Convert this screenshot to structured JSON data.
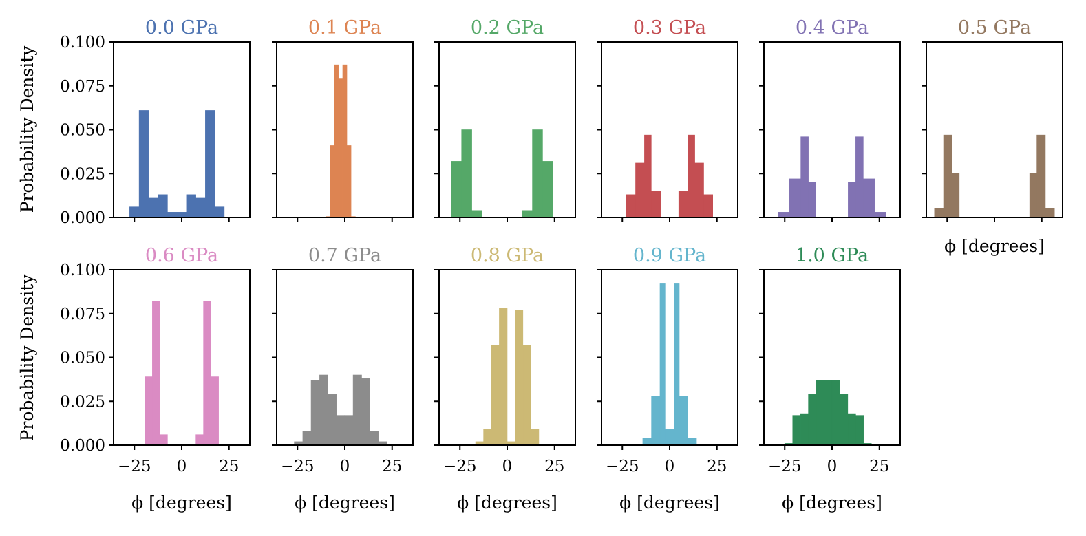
{
  "figure": {
    "ylabel": "Probability Density",
    "xlabel": "ϕ [degrees]"
  },
  "chart_data": {
    "type": "bar",
    "subtype": "histogram",
    "xlim": [
      -36,
      36
    ],
    "ylim": [
      0,
      0.1
    ],
    "xticks": [
      -25,
      0,
      25
    ],
    "xtick_labels": [
      "−25",
      "0",
      "25"
    ],
    "yticks": [
      0,
      0.025,
      0.05,
      0.075,
      0.1
    ],
    "ytick_labels": [
      "0.000",
      "0.025",
      "0.050",
      "0.075",
      "0.100"
    ],
    "panels": [
      {
        "title": "0.0 GPa",
        "color": "#4c72b0",
        "edges": [
          -27.5,
          -22.5,
          -17.5,
          -12.5,
          -7.5,
          -2.5,
          2.5,
          7.5,
          12.5,
          17.5,
          22.5,
          27.5
        ],
        "values": [
          0.006,
          0.061,
          0.011,
          0.013,
          0.003,
          0.003,
          0.013,
          0.011,
          0.061,
          0.006,
          0
        ]
      },
      {
        "title": "0.1 GPa",
        "color": "#dd8452",
        "edges": [
          -10,
          -7.8,
          -5.6,
          -3.3,
          -1.1,
          1.1,
          3.3,
          5.6,
          7.8,
          10
        ],
        "values": [
          0.0005,
          0.041,
          0.087,
          0.079,
          0.087,
          0.041,
          0.0005,
          0,
          0
        ]
      },
      {
        "title": "0.2 GPa",
        "color": "#55a868",
        "edges": [
          -29.5,
          -24.1,
          -18.7,
          -13.3,
          -7.9,
          -2.5,
          2.5,
          7.9,
          13.3,
          18.7,
          24.1,
          29.5
        ],
        "values": [
          0.032,
          0.05,
          0.004,
          0,
          0,
          0,
          0,
          0.004,
          0.05,
          0.032,
          0
        ]
      },
      {
        "title": "0.3 GPa",
        "color": "#c44e52",
        "edges": [
          -22.8,
          -18.0,
          -13.3,
          -9.7,
          -4.8,
          4.8,
          9.7,
          13.3,
          18.0,
          22.8
        ],
        "values": [
          0.013,
          0.031,
          0.047,
          0.015,
          0,
          0.015,
          0.047,
          0.031,
          0.013
        ]
      },
      {
        "title": "0.4 GPa",
        "color": "#8172b3",
        "edges": [
          -28.5,
          -22.5,
          -16.5,
          -12.5,
          -8.5,
          -1.6,
          1.6,
          8.5,
          12.5,
          16.5,
          22.5,
          28.5
        ],
        "values": [
          0.003,
          0.022,
          0.046,
          0.02,
          0,
          0,
          0,
          0.02,
          0.046,
          0.022,
          0.003
        ]
      },
      {
        "title": "0.5 GPa",
        "color": "#937860",
        "edges": [
          -31.7,
          -26.9,
          -22.4,
          -18.6,
          -14.4,
          14.4,
          18.6,
          22.4,
          26.9,
          31.7
        ],
        "values": [
          0.005,
          0.047,
          0.025,
          0,
          0,
          0,
          0.025,
          0.047,
          0.005
        ]
      },
      {
        "title": "0.6 GPa",
        "color": "#da8bc3",
        "edges": [
          -19.5,
          -15.5,
          -11.5,
          -7.5,
          -2.5,
          2.5,
          7.5,
          11.5,
          15.5,
          19.5
        ],
        "values": [
          0.039,
          0.082,
          0.006,
          0,
          0,
          0,
          0.006,
          0.082,
          0.039
        ]
      },
      {
        "title": "0.7 GPa",
        "color": "#8c8c8c",
        "edges": [
          -26.7,
          -22.2,
          -17.8,
          -13.3,
          -8.9,
          -4.4,
          0,
          4.4,
          8.9,
          13.3,
          17.8,
          22.2,
          26.7
        ],
        "values": [
          0.002,
          0.008,
          0.037,
          0.04,
          0.029,
          0.017,
          0.017,
          0.04,
          0.038,
          0.008,
          0.002,
          0
        ]
      },
      {
        "title": "0.8 GPa",
        "color": "#ccb974",
        "edges": [
          -16.7,
          -12.5,
          -8.3,
          -4.2,
          0,
          4.2,
          8.3,
          12.5,
          16.7
        ],
        "values": [
          0.002,
          0.009,
          0.057,
          0.078,
          0.002,
          0.077,
          0.057,
          0.009
        ]
      },
      {
        "title": "0.9 GPa",
        "color": "#64b5cd",
        "edges": [
          -14.2,
          -9.6,
          -5.1,
          -2.4,
          2.4,
          5.1,
          9.6,
          14.2
        ],
        "values": [
          0.004,
          0.028,
          0.092,
          0.009,
          0.092,
          0.028,
          0.004
        ]
      },
      {
        "title": "1.0 GPa",
        "color": "#2e8b57",
        "edges": [
          -25,
          -20.8,
          -16.7,
          -12.5,
          -8.3,
          -4.2,
          0,
          4.2,
          8.3,
          12.5,
          16.7,
          20.8,
          25
        ],
        "values": [
          0.001,
          0.017,
          0.018,
          0.029,
          0.037,
          0.037,
          0.037,
          0.029,
          0.018,
          0.017,
          0.001,
          0
        ]
      }
    ]
  }
}
